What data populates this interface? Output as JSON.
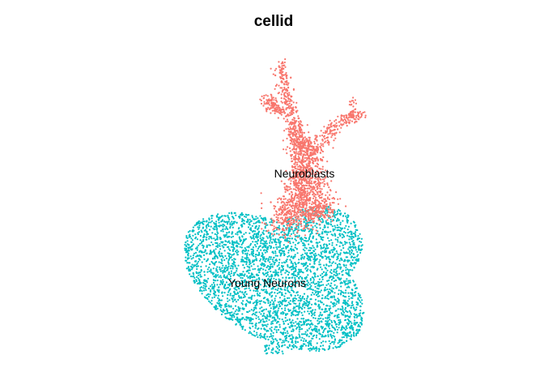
{
  "chart_data": {
    "type": "scatter",
    "title": "cellid",
    "xlabel": "",
    "ylabel": "",
    "axes_visible": false,
    "grid": false,
    "legend": "none",
    "series": [
      {
        "name": "Neuroblasts",
        "color": "#F8766D"
      },
      {
        "name": "Young Neurons",
        "color": "#00BFC4"
      }
    ],
    "cluster_labels": [
      "Neuroblasts",
      "Young Neurons"
    ]
  }
}
